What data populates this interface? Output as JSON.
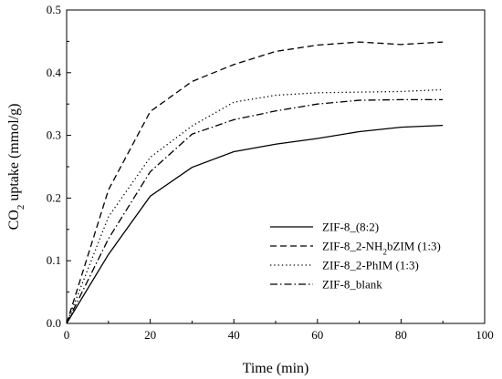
{
  "chart_data": {
    "type": "line",
    "title": "",
    "xlabel": "Time (min)",
    "ylabel_parts": [
      "CO",
      "2",
      " uptake (mmol/g)"
    ],
    "xlim": [
      0,
      100
    ],
    "ylim": [
      0,
      0.5
    ],
    "xticks": [
      "0",
      "20",
      "40",
      "60",
      "80",
      "100"
    ],
    "yticks": [
      "0.0",
      "0.1",
      "0.2",
      "0.3",
      "0.4",
      "0.5"
    ],
    "grid": false,
    "legend_position": "center-right",
    "series": [
      {
        "name_parts": [
          "ZIF-8_(8:2)"
        ],
        "dash": "solid",
        "x": [
          0,
          10,
          20,
          30,
          40,
          50,
          60,
          70,
          80,
          90
        ],
        "y": [
          0.0,
          0.11,
          0.203,
          0.249,
          0.274,
          0.286,
          0.295,
          0.306,
          0.313,
          0.316
        ]
      },
      {
        "name_parts": [
          "ZIF-8_2-NH",
          "2",
          "bZIM (1:3)"
        ],
        "dash": "dashed",
        "x": [
          0,
          10,
          20,
          30,
          40,
          50,
          60,
          70,
          80,
          90
        ],
        "y": [
          0.0,
          0.213,
          0.338,
          0.386,
          0.413,
          0.434,
          0.444,
          0.449,
          0.445,
          0.449
        ]
      },
      {
        "name_parts": [
          "ZIF-8_2-PhIM (1:3)"
        ],
        "dash": "dotted",
        "x": [
          0,
          10,
          20,
          30,
          40,
          50,
          60,
          70,
          80,
          90
        ],
        "y": [
          0.0,
          0.17,
          0.265,
          0.315,
          0.353,
          0.364,
          0.368,
          0.369,
          0.37,
          0.373
        ]
      },
      {
        "name_parts": [
          "ZIF-8_blank"
        ],
        "dash": "dashdot",
        "x": [
          0,
          10,
          20,
          30,
          40,
          50,
          60,
          70,
          80,
          90
        ],
        "y": [
          0.0,
          0.135,
          0.242,
          0.302,
          0.325,
          0.339,
          0.35,
          0.356,
          0.357,
          0.357
        ]
      }
    ]
  }
}
